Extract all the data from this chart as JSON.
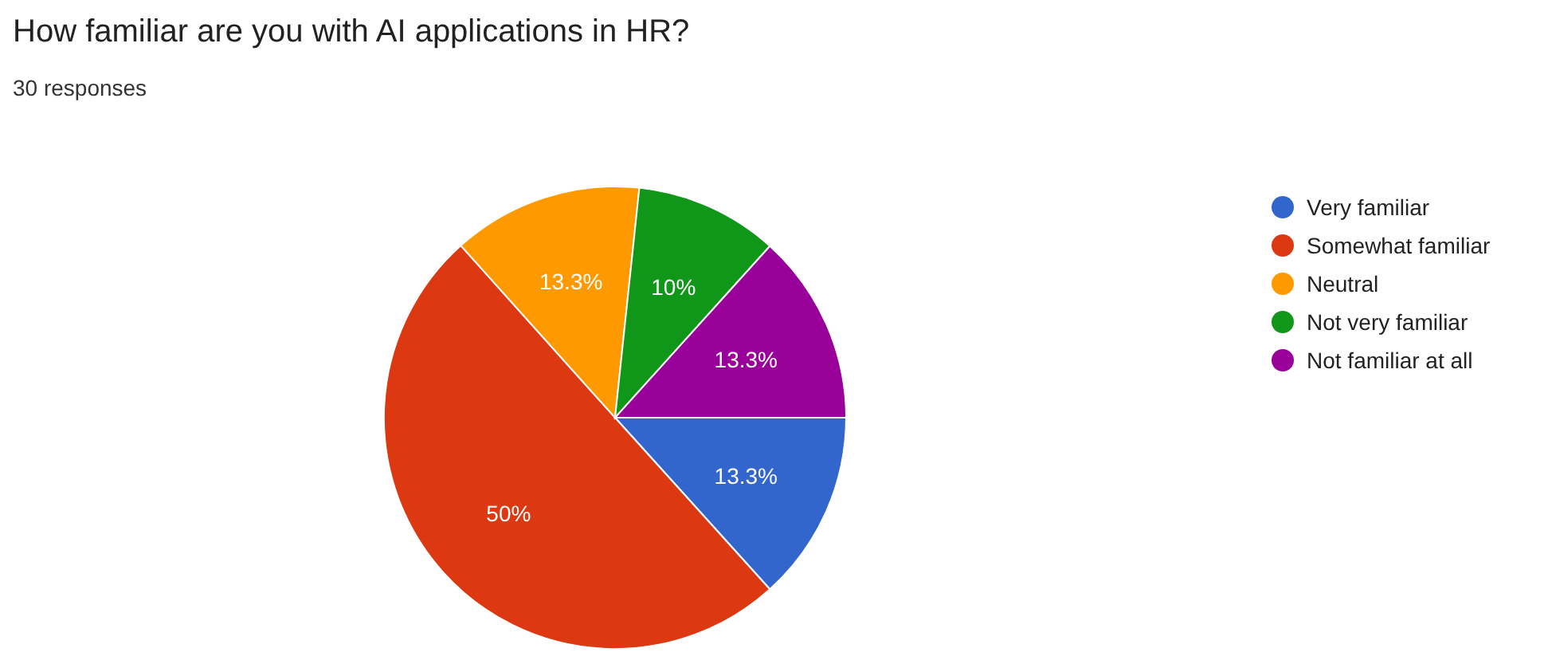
{
  "chart_data": {
    "type": "pie",
    "title": "How familiar are you with AI applications in HR?",
    "subtitle": "30 responses",
    "categories": [
      "Very familiar",
      "Somewhat familiar",
      "Neutral",
      "Not very familiar",
      "Not familiar at all"
    ],
    "values": [
      13.3,
      50,
      13.3,
      10,
      13.3
    ],
    "value_labels": [
      "13.3%",
      "50%",
      "13.3%",
      "10%",
      "13.3%"
    ],
    "colors": [
      "#3366cc",
      "#dc3912",
      "#ff9900",
      "#109618",
      "#990099"
    ],
    "legend": "right"
  }
}
